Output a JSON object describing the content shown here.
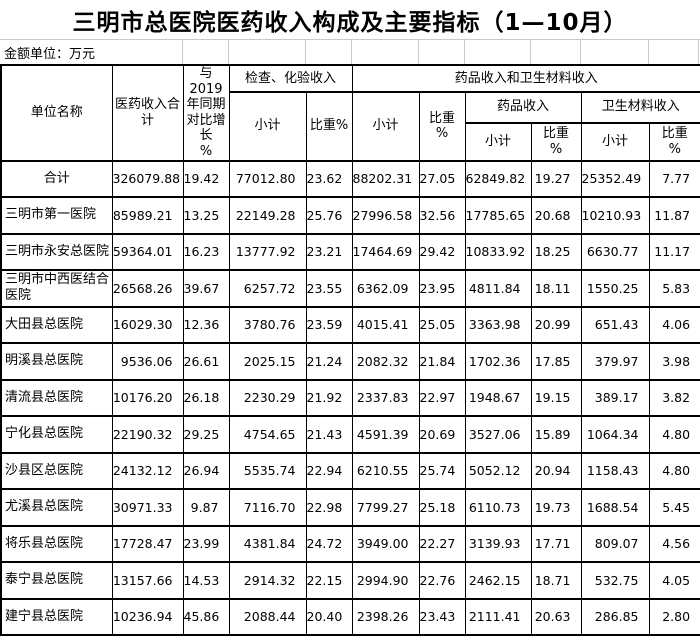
{
  "title": "三明市总医院医药收入构成及主要指标（1—10月）",
  "unit_note": "金额单位：万元",
  "table": {
    "header": {
      "unit_name": "单位名称",
      "total_income": "医药收入合计",
      "growth_vs_2019": "与2019\n年同期\n对比增\n长\n%",
      "exam_group": "检查、化验收入",
      "drug_material_group": "药品收入和卫生材料收入",
      "drug_group": "药品收入",
      "material_group": "卫生材料收入",
      "subtotal": "小计",
      "share_inline": "比重%",
      "share_stacked": "比重\n%"
    },
    "rows": [
      {
        "name": "合计",
        "values": [
          "326079.88",
          "19.42",
          "77012.80",
          "23.62",
          "88202.31",
          "27.05",
          "62849.82",
          "19.27",
          "25352.49",
          "7.77"
        ]
      },
      {
        "name": "三明市第一医院",
        "values": [
          "85989.21",
          "13.25",
          "22149.28",
          "25.76",
          "27996.58",
          "32.56",
          "17785.65",
          "20.68",
          "10210.93",
          "11.87"
        ]
      },
      {
        "name": "三明市永安总医院",
        "values": [
          "59364.01",
          "16.23",
          "13777.92",
          "23.21",
          "17464.69",
          "29.42",
          "10833.92",
          "18.25",
          "6630.77",
          "11.17"
        ]
      },
      {
        "name": "三明市中西医结合医院",
        "values": [
          "26568.26",
          "39.67",
          "6257.72",
          "23.55",
          "6362.09",
          "23.95",
          "4811.84",
          "18.11",
          "1550.25",
          "5.83"
        ]
      },
      {
        "name": "大田县总医院",
        "values": [
          "16029.30",
          "12.36",
          "3780.76",
          "23.59",
          "4015.41",
          "25.05",
          "3363.98",
          "20.99",
          "651.43",
          "4.06"
        ]
      },
      {
        "name": "明溪县总医院",
        "values": [
          "9536.06",
          "26.61",
          "2025.15",
          "21.24",
          "2082.32",
          "21.84",
          "1702.36",
          "17.85",
          "379.97",
          "3.98"
        ]
      },
      {
        "name": "清流县总医院",
        "values": [
          "10176.20",
          "26.18",
          "2230.29",
          "21.92",
          "2337.83",
          "22.97",
          "1948.67",
          "19.15",
          "389.17",
          "3.82"
        ]
      },
      {
        "name": "宁化县总医院",
        "values": [
          "22190.32",
          "29.25",
          "4754.65",
          "21.43",
          "4591.39",
          "20.69",
          "3527.06",
          "15.89",
          "1064.34",
          "4.80"
        ]
      },
      {
        "name": "沙县区总医院",
        "values": [
          "24132.12",
          "26.94",
          "5535.74",
          "22.94",
          "6210.55",
          "25.74",
          "5052.12",
          "20.94",
          "1158.43",
          "4.80"
        ]
      },
      {
        "name": "尤溪县总医院",
        "values": [
          "30971.33",
          "9.87",
          "7116.70",
          "22.98",
          "7799.27",
          "25.18",
          "6110.73",
          "19.73",
          "1688.54",
          "5.45"
        ]
      },
      {
        "name": "将乐县总医院",
        "values": [
          "17728.47",
          "23.99",
          "4381.84",
          "24.72",
          "3949.00",
          "22.27",
          "3139.93",
          "17.71",
          "809.07",
          "4.56"
        ]
      },
      {
        "name": "泰宁县总医院",
        "values": [
          "13157.66",
          "14.53",
          "2914.32",
          "22.15",
          "2994.90",
          "22.76",
          "2462.15",
          "18.71",
          "532.75",
          "4.05"
        ]
      },
      {
        "name": "建宁县总医院",
        "values": [
          "10236.94",
          "45.86",
          "2088.44",
          "20.40",
          "2398.26",
          "23.43",
          "2111.41",
          "20.63",
          "286.85",
          "2.80"
        ]
      }
    ]
  }
}
